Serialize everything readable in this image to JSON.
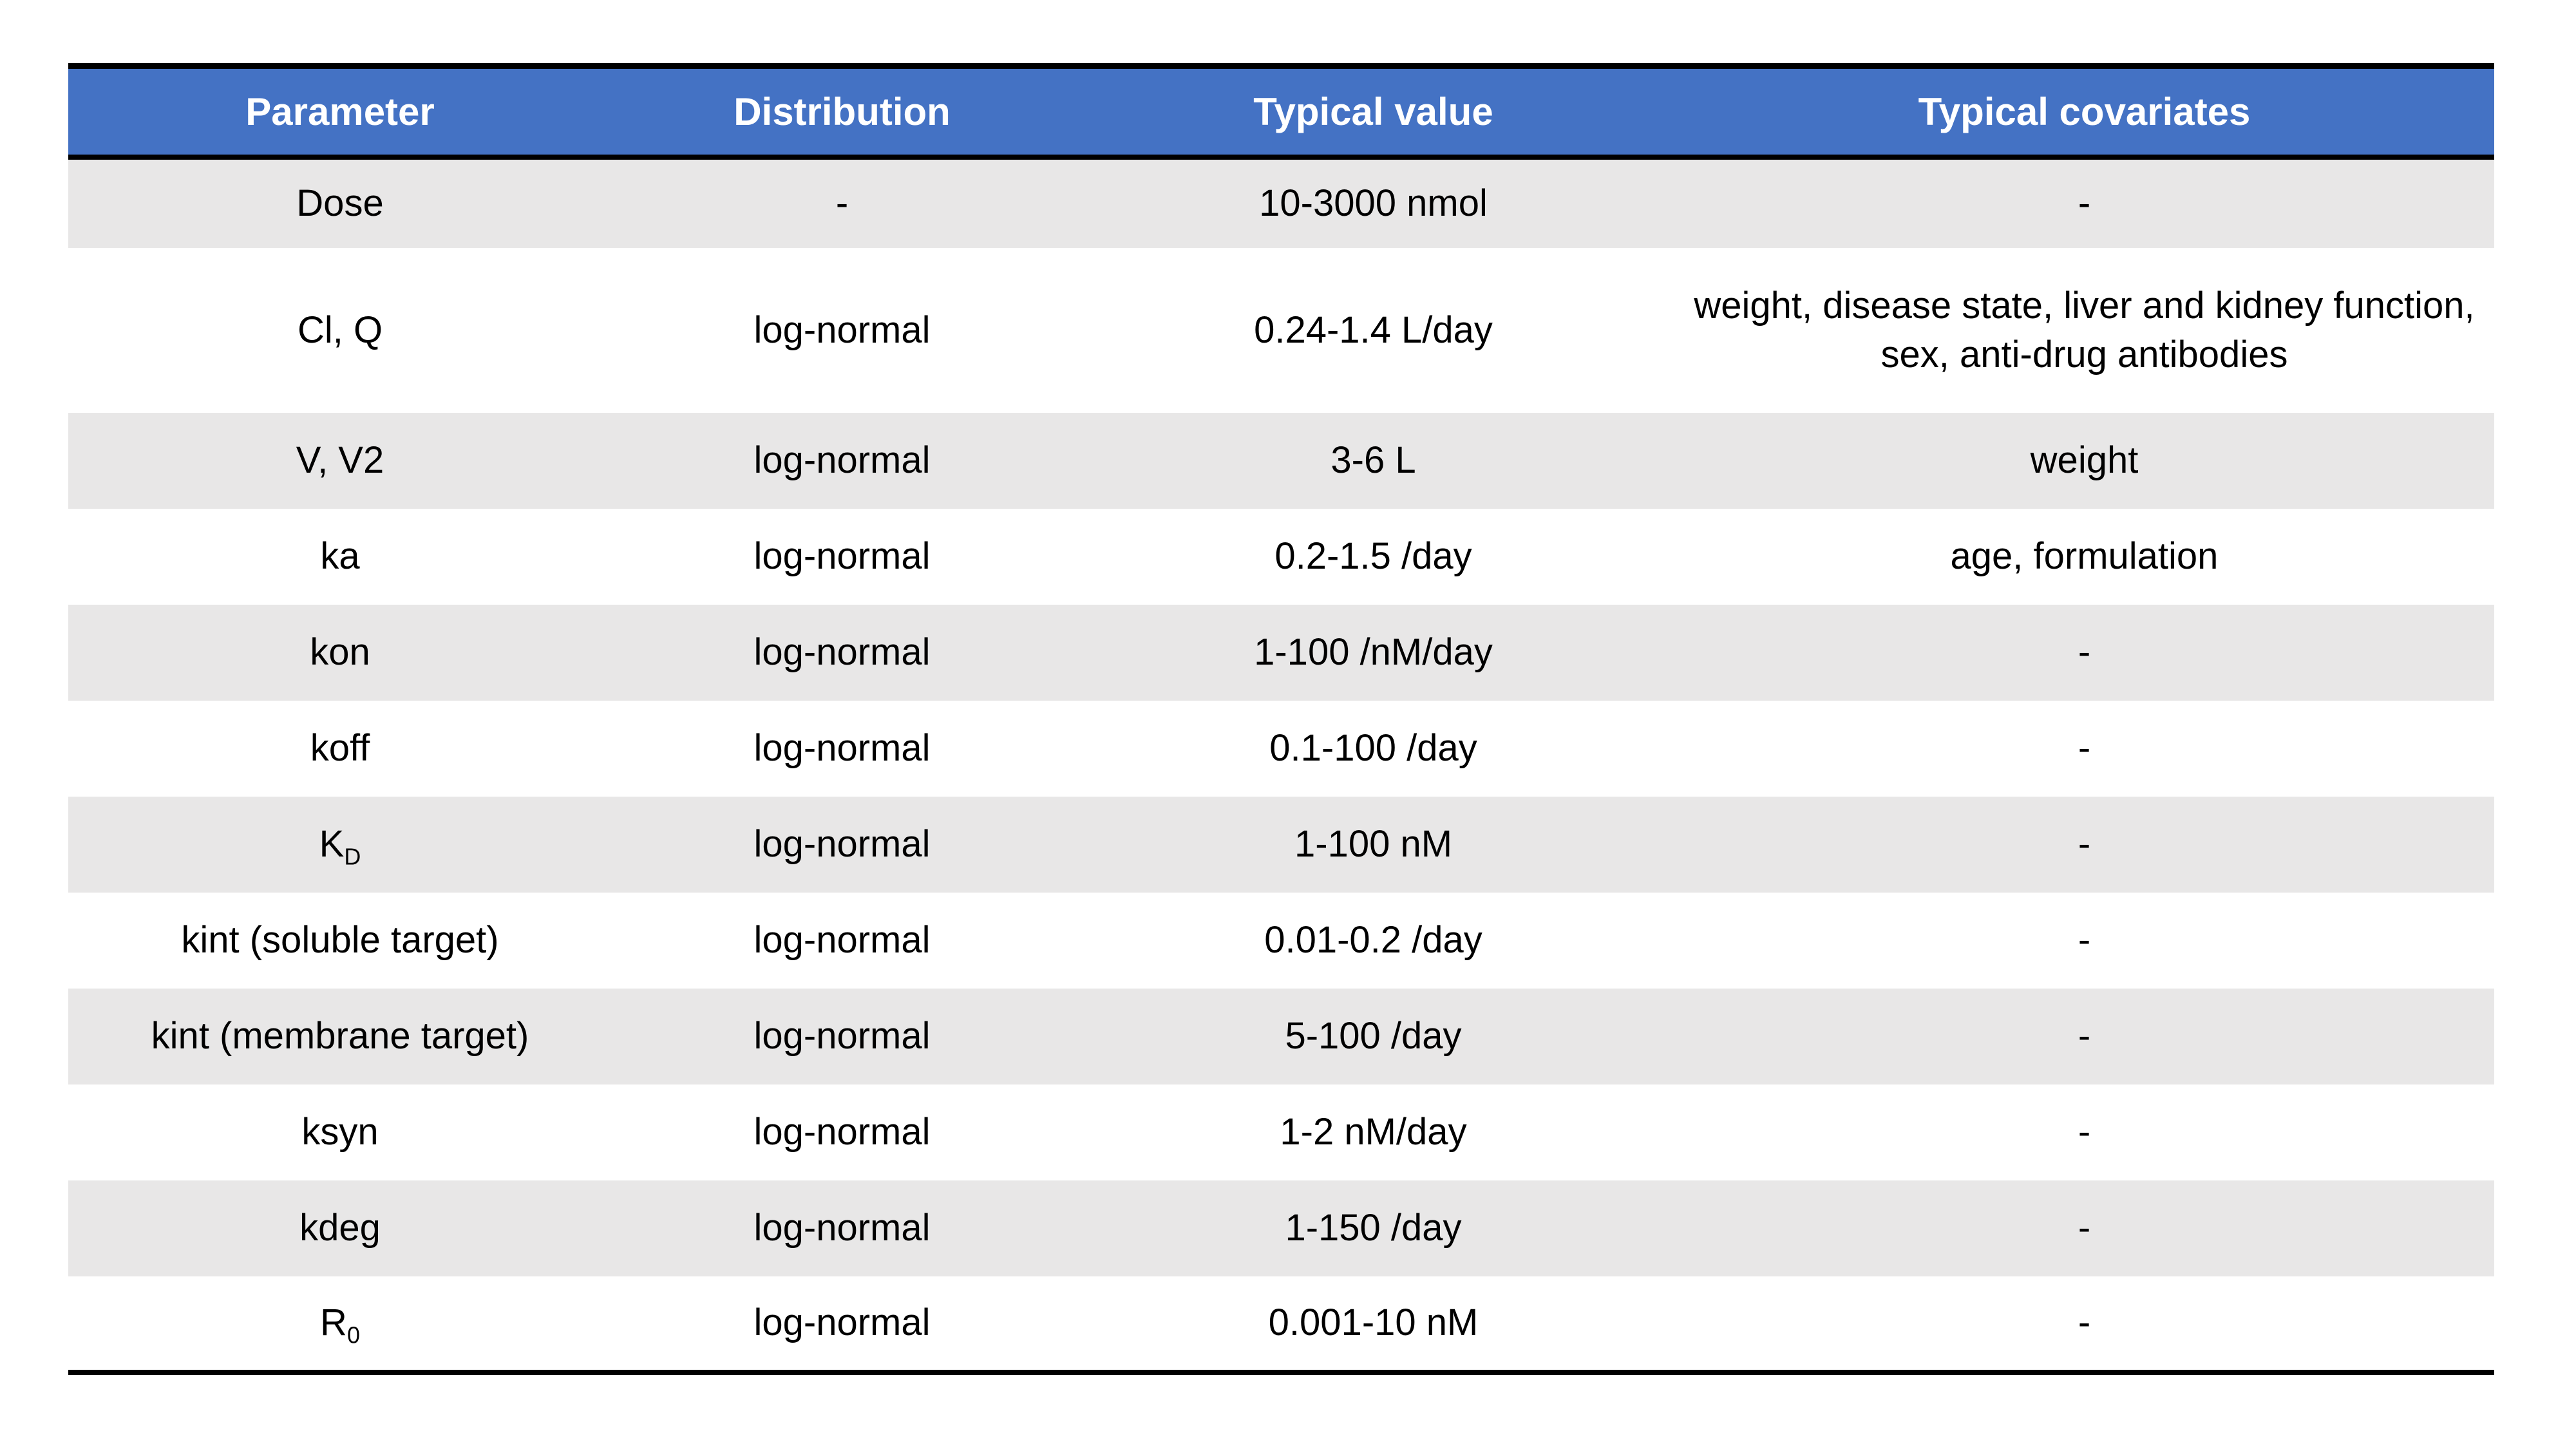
{
  "table": {
    "columns": [
      {
        "label": "Parameter"
      },
      {
        "label": "Distribution"
      },
      {
        "label": "Typical value"
      },
      {
        "label": "Typical covariates"
      }
    ],
    "rows": [
      {
        "parameter": "Dose",
        "parameter_sub": "",
        "distribution": "-",
        "typical_value": "10-3000 nmol",
        "typical_covariates": "-"
      },
      {
        "parameter": "Cl, Q",
        "parameter_sub": "",
        "distribution": "log-normal",
        "typical_value": "0.24-1.4 L/day",
        "typical_covariates": "weight, disease state, liver and kidney function, sex, anti-drug antibodies"
      },
      {
        "parameter": "V, V2",
        "parameter_sub": "",
        "distribution": "log-normal",
        "typical_value": "3-6 L",
        "typical_covariates": "weight"
      },
      {
        "parameter": "ka",
        "parameter_sub": "",
        "distribution": "log-normal",
        "typical_value": "0.2-1.5 /day",
        "typical_covariates": "age, formulation"
      },
      {
        "parameter": "kon",
        "parameter_sub": "",
        "distribution": "log-normal",
        "typical_value": "1-100 /nM/day",
        "typical_covariates": "-"
      },
      {
        "parameter": "koff",
        "parameter_sub": "",
        "distribution": "log-normal",
        "typical_value": "0.1-100 /day",
        "typical_covariates": "-"
      },
      {
        "parameter": "K",
        "parameter_sub": "D",
        "distribution": "log-normal",
        "typical_value": "1-100 nM",
        "typical_covariates": "-"
      },
      {
        "parameter": "kint (soluble target)",
        "parameter_sub": "",
        "distribution": "log-normal",
        "typical_value": "0.01-0.2 /day",
        "typical_covariates": "-"
      },
      {
        "parameter": "kint (membrane target)",
        "parameter_sub": "",
        "distribution": "log-normal",
        "typical_value": "5-100 /day",
        "typical_covariates": "-"
      },
      {
        "parameter": "ksyn",
        "parameter_sub": "",
        "distribution": "log-normal",
        "typical_value": "1-2 nM/day",
        "typical_covariates": "-"
      },
      {
        "parameter": "kdeg",
        "parameter_sub": "",
        "distribution": "log-normal",
        "typical_value": "1-150 /day",
        "typical_covariates": "-"
      },
      {
        "parameter": "R",
        "parameter_sub": "0",
        "distribution": "log-normal",
        "typical_value": "0.001-10 nM",
        "typical_covariates": "-"
      }
    ]
  },
  "colors": {
    "header_bg": "#4472C4",
    "header_text": "#FFFFFF",
    "row_alt_bg": "#E8E7E7",
    "row_bg": "#FFFFFF",
    "border": "#000000",
    "text": "#000000"
  }
}
